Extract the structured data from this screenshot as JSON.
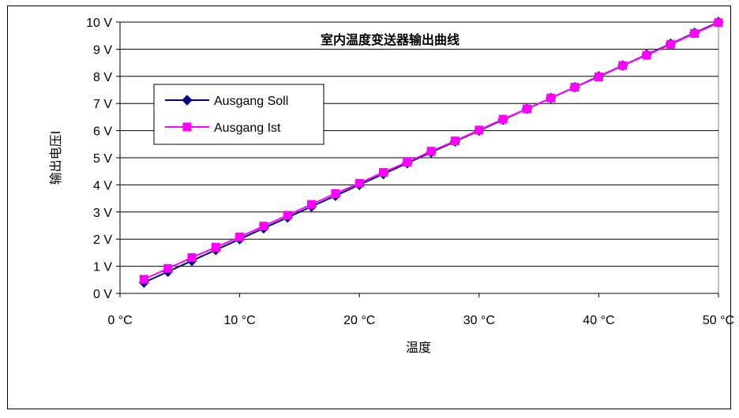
{
  "chart_data": {
    "type": "line",
    "title": "室内温度变送器输出曲线",
    "xlabel": "温度",
    "ylabel": "输出电压I",
    "xlim": [
      0,
      50
    ],
    "ylim": [
      0,
      10
    ],
    "x_ticks": [
      "0 °C",
      "10 °C",
      "20 °C",
      "30 °C",
      "40 °C",
      "50 °C"
    ],
    "y_ticks": [
      "0 V",
      "1 V",
      "2 V",
      "3 V",
      "4 V",
      "5 V",
      "6 V",
      "7 V",
      "8 V",
      "9 V",
      "10 V"
    ],
    "grid": "horizontal",
    "legend_position": "top-left",
    "x": [
      2,
      4,
      6,
      8,
      10,
      12,
      14,
      16,
      18,
      20,
      22,
      24,
      26,
      28,
      30,
      32,
      34,
      36,
      38,
      40,
      42,
      44,
      46,
      48,
      50
    ],
    "series": [
      {
        "name": "Ausgang Soll",
        "color": "#000080",
        "marker": "diamond",
        "values": [
          0.4,
          0.8,
          1.2,
          1.6,
          2.0,
          2.4,
          2.8,
          3.2,
          3.6,
          4.0,
          4.4,
          4.8,
          5.2,
          5.6,
          6.0,
          6.4,
          6.8,
          7.2,
          7.6,
          8.0,
          8.4,
          8.8,
          9.2,
          9.6,
          10.0
        ]
      },
      {
        "name": "Ausgang Ist",
        "color": "#ff00ff",
        "marker": "square",
        "values": [
          0.52,
          0.92,
          1.32,
          1.7,
          2.08,
          2.48,
          2.88,
          3.28,
          3.68,
          4.06,
          4.46,
          4.84,
          5.24,
          5.62,
          6.02,
          6.42,
          6.8,
          7.2,
          7.6,
          7.98,
          8.4,
          8.78,
          9.18,
          9.58,
          9.98
        ]
      }
    ]
  }
}
